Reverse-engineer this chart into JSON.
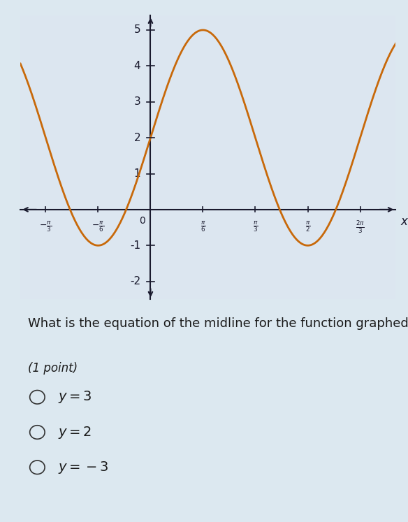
{
  "amplitude": 3,
  "vertical_shift": 2,
  "frequency_multiplier": 3,
  "x_min": -1.3,
  "x_max": 2.45,
  "y_min": -2.5,
  "y_max": 5.4,
  "curve_color": "#C8690A",
  "curve_linewidth": 2.0,
  "background_color": "#dce6f0",
  "axes_color": "#1a1a2e",
  "grid_color": "#aaaaaa",
  "x_ticks": [
    -1.0471975511965976,
    -0.5235987755982988,
    0.5235987755982988,
    1.0471975511965976,
    1.5707963267948966,
    2.0943951023931953
  ],
  "x_tick_labels": [
    "-\\frac{\\pi}{3}",
    "-\\frac{\\pi}{6}",
    "\\frac{\\pi}{6}",
    "\\frac{\\pi}{3}",
    "\\frac{\\pi}{2}",
    "\\frac{2\\pi}{3}"
  ],
  "y_ticks": [
    -2,
    -1,
    1,
    2,
    3,
    4,
    5
  ],
  "question_text": "What is the equation of the midline for the function graphed?",
  "point_text": "(1 point)",
  "options": [
    "y = 3",
    "y = 2",
    "y = -3"
  ],
  "text_color": "#1a1a1a",
  "option_font_size": 14,
  "question_font_size": 13
}
